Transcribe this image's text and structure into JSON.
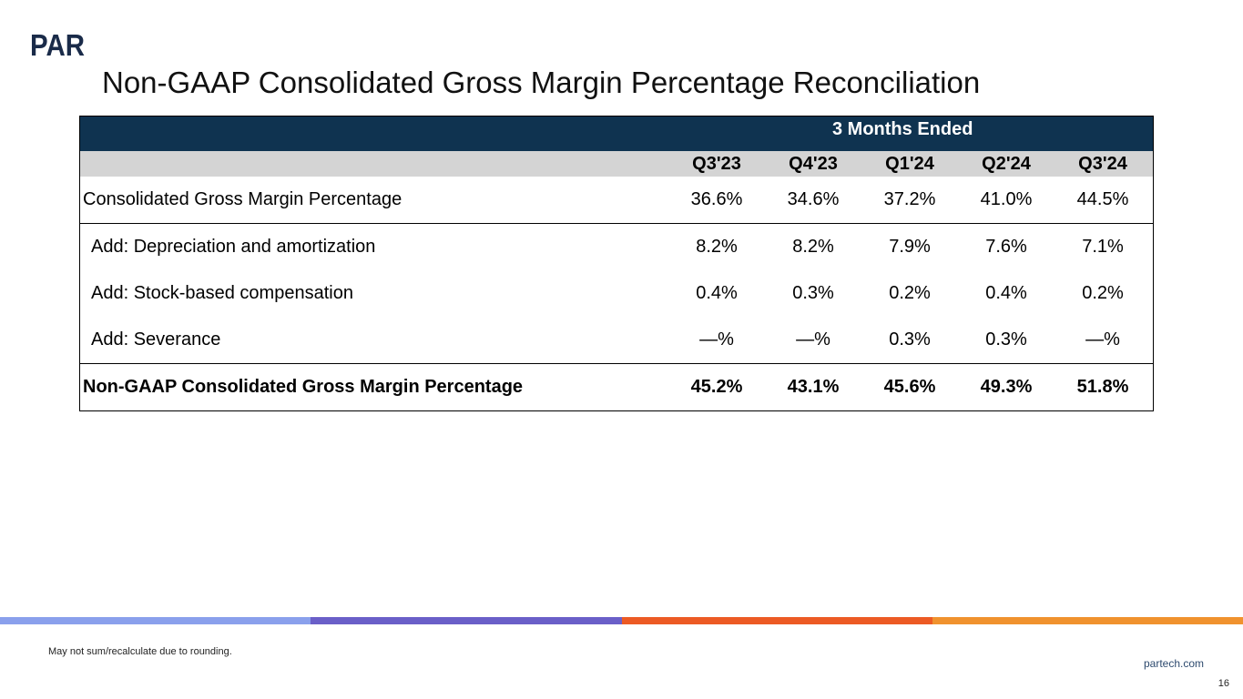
{
  "logo_text": "PAR",
  "title": "Non-GAAP Consolidated Gross Margin Percentage Reconciliation",
  "table": {
    "period_header": "3 Months Ended",
    "quarters": [
      "Q3'23",
      "Q4'23",
      "Q1'24",
      "Q2'24",
      "Q3'24"
    ],
    "rows": [
      {
        "label": "Consolidated Gross Margin Percentage",
        "values": [
          "36.6%",
          "34.6%",
          "37.2%",
          "41.0%",
          "44.5%"
        ]
      },
      {
        "label": "Add: Depreciation and amortization",
        "values": [
          "8.2%",
          "8.2%",
          "7.9%",
          "7.6%",
          "7.1%"
        ]
      },
      {
        "label": "Add: Stock-based compensation",
        "values": [
          "0.4%",
          "0.3%",
          "0.2%",
          "0.4%",
          "0.2%"
        ]
      },
      {
        "label": "Add: Severance",
        "values": [
          "—%",
          "—%",
          "0.3%",
          "0.3%",
          "—%"
        ]
      },
      {
        "label": "Non-GAAP Consolidated Gross Margin Percentage",
        "values": [
          "45.2%",
          "43.1%",
          "45.6%",
          "49.3%",
          "51.8%"
        ]
      }
    ]
  },
  "colors": {
    "header_band": "#0f3350",
    "subheader_band": "#d4d4d4",
    "stripe": [
      "#8aa0ec",
      "#6a5fc8",
      "#ec5a24",
      "#f0922e"
    ]
  },
  "footnote": "May not sum/recalculate due to rounding.",
  "website": "partech.com",
  "page_number": "16"
}
